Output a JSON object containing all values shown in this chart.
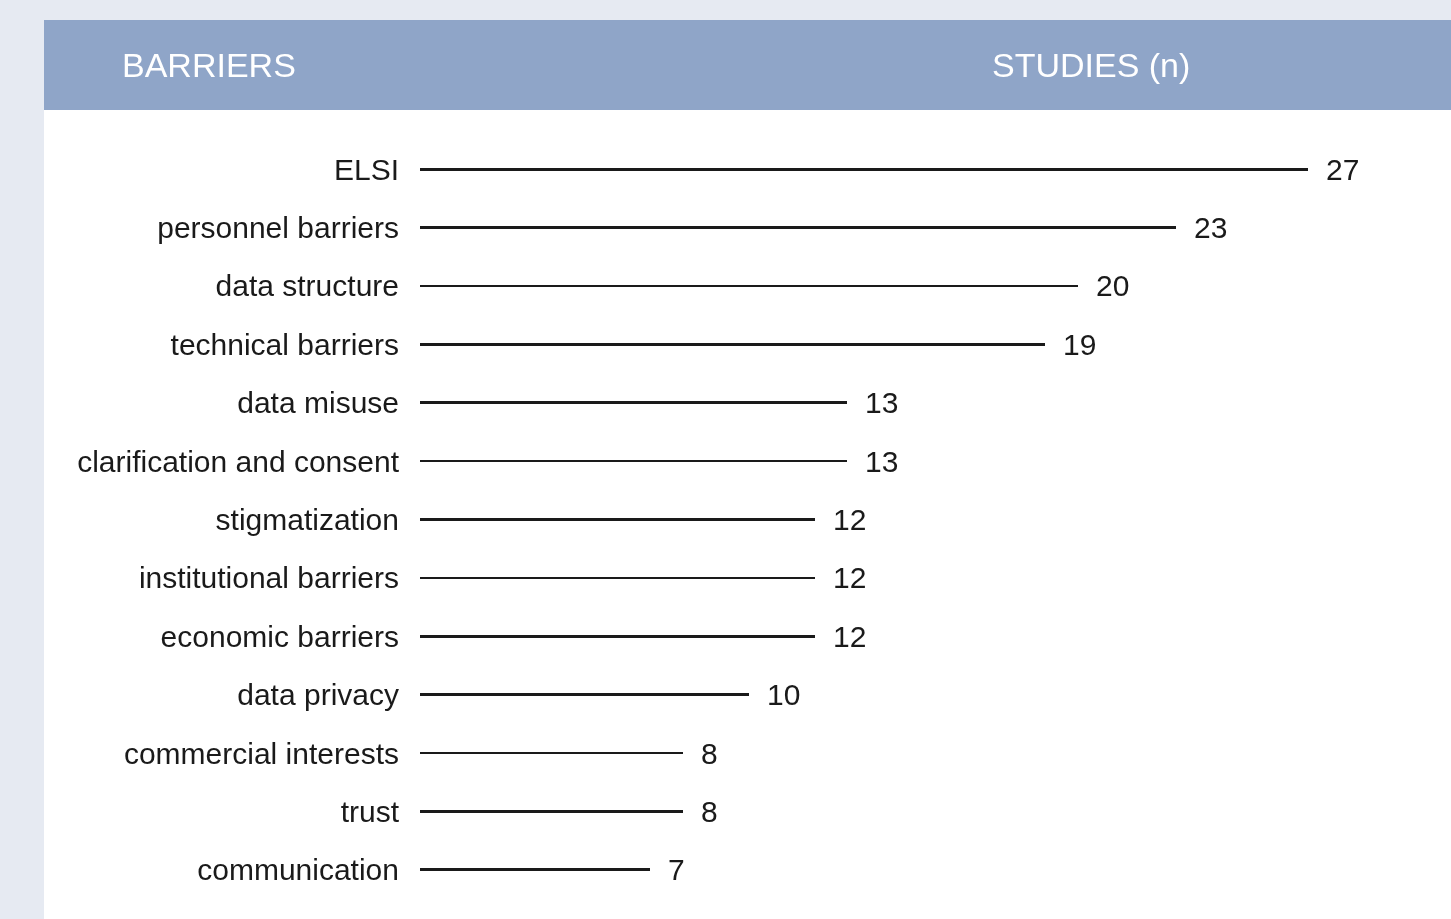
{
  "chart_data": {
    "type": "bar",
    "orientation": "horizontal",
    "xlabel": "STUDIES (n)",
    "ylabel": "BARRIERS",
    "categories": [
      "ELSI",
      "personnel barriers",
      "data structure",
      "technical barriers",
      "data misuse",
      "clarification and consent",
      "stigmatization",
      "institutional barriers",
      "economic barriers",
      "data privacy",
      "commercial interests",
      "trust",
      "communication"
    ],
    "values": [
      27,
      23,
      20,
      19,
      13,
      13,
      12,
      12,
      12,
      10,
      8,
      8,
      7
    ],
    "color": "#1a1a1a",
    "data_labels": true
  }
}
